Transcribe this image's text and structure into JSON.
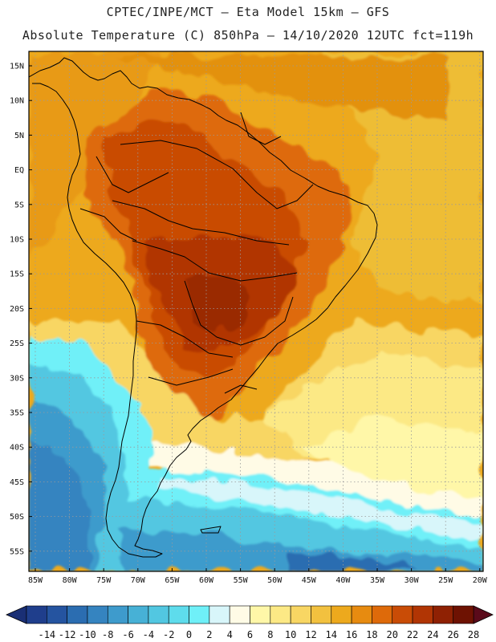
{
  "header": {
    "line1": "CPTEC/INPE/MCT –  Eta Model 15km – GFS",
    "line2": "Absolute Temperature (C) 850hPa – 14/10/2020 12UTC fct=119h"
  },
  "axes": {
    "lat_labels": [
      "15N",
      "10N",
      "5N",
      "EQ",
      "5S",
      "10S",
      "15S",
      "20S",
      "25S",
      "30S",
      "35S",
      "40S",
      "45S",
      "50S",
      "55S"
    ],
    "lon_labels": [
      "85W",
      "80W",
      "75W",
      "70W",
      "65W",
      "60W",
      "55W",
      "50W",
      "45W",
      "40W",
      "35W",
      "30W",
      "25W",
      "20W"
    ]
  },
  "colorbar": {
    "labels": [
      "-14",
      "-12",
      "-10",
      "-8",
      "-6",
      "-4",
      "-2",
      "0",
      "2",
      "4",
      "6",
      "8",
      "10",
      "12",
      "14",
      "16",
      "18",
      "20",
      "22",
      "24",
      "26",
      "28"
    ],
    "colors": [
      "#1f3e8c",
      "#2554a0",
      "#2b6db1",
      "#3584c0",
      "#3e9bcc",
      "#47b1d6",
      "#52c7e1",
      "#5edcec",
      "#6ff0f8",
      "#d8f6fa",
      "#fffbe6",
      "#fff7a8",
      "#fce985",
      "#f8d663",
      "#f2c13f",
      "#eda91d",
      "#e78b10",
      "#de6a0a",
      "#c94c06",
      "#b13504",
      "#8f2103",
      "#6e1202"
    ],
    "min_color": "#1a2f75",
    "max_color": "#5a0a1a"
  }
}
